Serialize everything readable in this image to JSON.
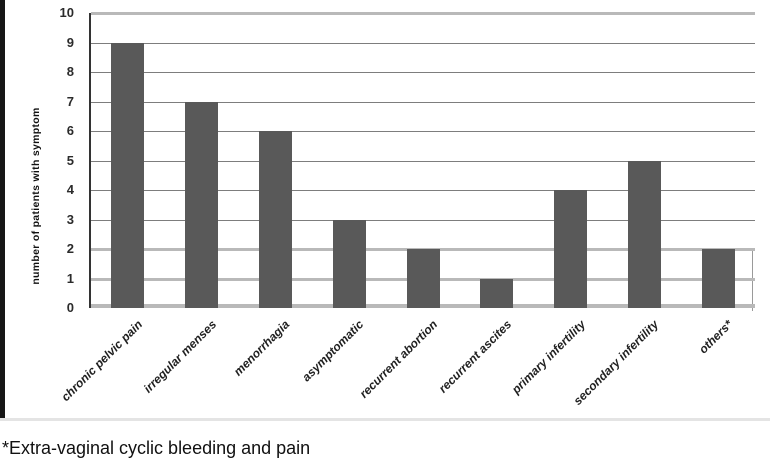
{
  "chart_data": {
    "type": "bar",
    "title": "",
    "xlabel": "",
    "ylabel": "number of patients with symptom",
    "categories": [
      "chronic pelvic pain",
      "irregular menses",
      "menorrhagia",
      "asymptomatic",
      "recurrent abortion",
      "recurrent ascites",
      "primary infertility",
      "secondary infertility",
      "others*"
    ],
    "values": [
      9,
      7,
      6,
      3,
      2,
      1,
      4,
      5,
      2
    ],
    "ylim": [
      0,
      10
    ],
    "yticks": [
      0,
      1,
      2,
      3,
      4,
      5,
      6,
      7,
      8,
      9,
      10
    ],
    "grid": true,
    "legend": "none",
    "bar_color": "#595959",
    "gridline_color": "#7d7d7d",
    "light_gridline_color": "#b9b9b9",
    "light_gridline_values": [
      10,
      2,
      1,
      0
    ],
    "x_label_rotation_deg": -45
  },
  "footnote": "*Extra-vaginal cyclic bleeding and pain"
}
